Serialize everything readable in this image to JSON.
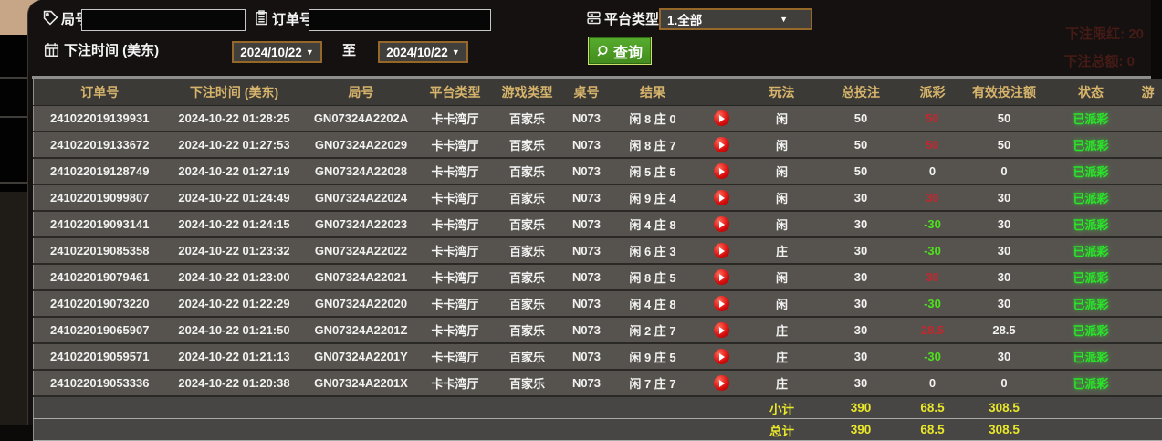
{
  "filters": {
    "round_label": "局号",
    "round_value": "",
    "order_label": "订单号",
    "order_value": "",
    "platform_label": "平台类型",
    "platform_value": "1.全部",
    "bet_time_label": "下注时间 (美东)",
    "date_from": "2024/10/22",
    "to_label": "至",
    "date_to": "2024/10/22",
    "search_label": "查询"
  },
  "background_text": {
    "line1": "下注限红: 20",
    "line2": "下注总额: 0"
  },
  "table": {
    "headers": [
      "订单号",
      "下注时间 (美东)",
      "局号",
      "平台类型",
      "游戏类型",
      "桌号",
      "结果",
      "",
      "玩法",
      "总投注",
      "派彩",
      "有效投注额",
      "状态",
      "游"
    ],
    "rows": [
      {
        "order": "241022019139931",
        "time": "2024-10-22 01:28:25",
        "round": "GN07324A2202A",
        "platform": "卡卡湾厅",
        "game": "百家乐",
        "table_no": "N073",
        "result": "闲 8 庄 0",
        "play": "闲",
        "bet": "50",
        "payout": "50",
        "payout_color": "red",
        "valid": "50",
        "status": "已派彩"
      },
      {
        "order": "241022019133672",
        "time": "2024-10-22 01:27:53",
        "round": "GN07324A22029",
        "platform": "卡卡湾厅",
        "game": "百家乐",
        "table_no": "N073",
        "result": "闲 8 庄 7",
        "play": "闲",
        "bet": "50",
        "payout": "50",
        "payout_color": "red",
        "valid": "50",
        "status": "已派彩"
      },
      {
        "order": "241022019128749",
        "time": "2024-10-22 01:27:19",
        "round": "GN07324A22028",
        "platform": "卡卡湾厅",
        "game": "百家乐",
        "table_no": "N073",
        "result": "闲 5 庄 5",
        "play": "闲",
        "bet": "50",
        "payout": "0",
        "payout_color": "white",
        "valid": "0",
        "status": "已派彩"
      },
      {
        "order": "241022019099807",
        "time": "2024-10-22 01:24:49",
        "round": "GN07324A22024",
        "platform": "卡卡湾厅",
        "game": "百家乐",
        "table_no": "N073",
        "result": "闲 9 庄 4",
        "play": "闲",
        "bet": "30",
        "payout": "30",
        "payout_color": "red",
        "valid": "30",
        "status": "已派彩"
      },
      {
        "order": "241022019093141",
        "time": "2024-10-22 01:24:15",
        "round": "GN07324A22023",
        "platform": "卡卡湾厅",
        "game": "百家乐",
        "table_no": "N073",
        "result": "闲 4 庄 8",
        "play": "闲",
        "bet": "30",
        "payout": "-30",
        "payout_color": "green",
        "valid": "30",
        "status": "已派彩"
      },
      {
        "order": "241022019085358",
        "time": "2024-10-22 01:23:32",
        "round": "GN07324A22022",
        "platform": "卡卡湾厅",
        "game": "百家乐",
        "table_no": "N073",
        "result": "闲 6 庄 3",
        "play": "庄",
        "bet": "30",
        "payout": "-30",
        "payout_color": "green",
        "valid": "30",
        "status": "已派彩"
      },
      {
        "order": "241022019079461",
        "time": "2024-10-22 01:23:00",
        "round": "GN07324A22021",
        "platform": "卡卡湾厅",
        "game": "百家乐",
        "table_no": "N073",
        "result": "闲 8 庄 5",
        "play": "闲",
        "bet": "30",
        "payout": "30",
        "payout_color": "red",
        "valid": "30",
        "status": "已派彩"
      },
      {
        "order": "241022019073220",
        "time": "2024-10-22 01:22:29",
        "round": "GN07324A22020",
        "platform": "卡卡湾厅",
        "game": "百家乐",
        "table_no": "N073",
        "result": "闲 4 庄 8",
        "play": "闲",
        "bet": "30",
        "payout": "-30",
        "payout_color": "green",
        "valid": "30",
        "status": "已派彩"
      },
      {
        "order": "241022019065907",
        "time": "2024-10-22 01:21:50",
        "round": "GN07324A2201Z",
        "platform": "卡卡湾厅",
        "game": "百家乐",
        "table_no": "N073",
        "result": "闲 2 庄 7",
        "play": "庄",
        "bet": "30",
        "payout": "28.5",
        "payout_color": "red",
        "valid": "28.5",
        "status": "已派彩"
      },
      {
        "order": "241022019059571",
        "time": "2024-10-22 01:21:13",
        "round": "GN07324A2201Y",
        "platform": "卡卡湾厅",
        "game": "百家乐",
        "table_no": "N073",
        "result": "闲 9 庄 5",
        "play": "庄",
        "bet": "30",
        "payout": "-30",
        "payout_color": "green",
        "valid": "30",
        "status": "已派彩"
      },
      {
        "order": "241022019053336",
        "time": "2024-10-22 01:20:38",
        "round": "GN07324A2201X",
        "platform": "卡卡湾厅",
        "game": "百家乐",
        "table_no": "N073",
        "result": "闲 7 庄 7",
        "play": "庄",
        "bet": "30",
        "payout": "0",
        "payout_color": "white",
        "valid": "0",
        "status": "已派彩"
      }
    ],
    "subtotal": {
      "label": "小计",
      "bet": "390",
      "payout": "68.5",
      "valid": "308.5"
    },
    "total": {
      "label": "总计",
      "bet": "390",
      "payout": "68.5",
      "valid": "308.5"
    }
  },
  "colors": {
    "header_gold": "#d7b46c",
    "payout_red": "#c2282f",
    "payout_green": "#4ee01e",
    "status_green": "#2ae42a",
    "total_yellow": "#e9e72a",
    "border_orange": "#95682a",
    "button_green": "#4ba426"
  }
}
